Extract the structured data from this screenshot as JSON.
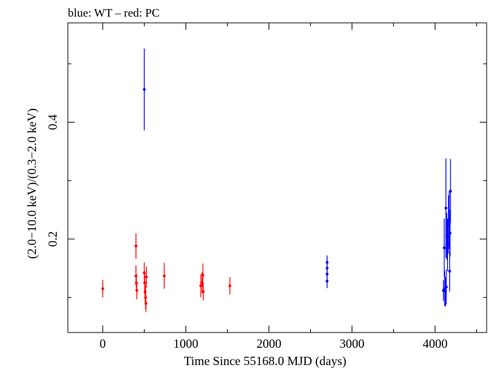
{
  "title": "blue: WT – red: PC",
  "chart_data": {
    "type": "scatter",
    "title": "blue: WT – red: PC",
    "xlabel": "Time Since 55168.0 MJD (days)",
    "ylabel": "(2.0−10.0 keV)/(0.3−2.0 keV)",
    "xlim": [
      -420,
      4620
    ],
    "ylim": [
      0.04,
      0.57
    ],
    "x_ticks": [
      0,
      1000,
      2000,
      3000,
      4000
    ],
    "x_tick_labels": [
      "0",
      "1000",
      "2000",
      "3000",
      "4000"
    ],
    "y_ticks": [
      0.2,
      0.4
    ],
    "y_tick_labels": [
      "0.2",
      "0.4"
    ],
    "grid": false,
    "series": [
      {
        "name": "PC",
        "color": "#ff0000",
        "points": [
          {
            "x": 0,
            "y": 0.115,
            "err": 0.015
          },
          {
            "x": 400,
            "y": 0.188,
            "err": 0.022
          },
          {
            "x": 400,
            "y": 0.137,
            "err": 0.018
          },
          {
            "x": 405,
            "y": 0.125,
            "err": 0.015
          },
          {
            "x": 410,
            "y": 0.112,
            "err": 0.015
          },
          {
            "x": 500,
            "y": 0.142,
            "err": 0.018
          },
          {
            "x": 505,
            "y": 0.125,
            "err": 0.02
          },
          {
            "x": 510,
            "y": 0.11,
            "err": 0.018
          },
          {
            "x": 515,
            "y": 0.1,
            "err": 0.02
          },
          {
            "x": 520,
            "y": 0.09,
            "err": 0.015
          },
          {
            "x": 525,
            "y": 0.135,
            "err": 0.018
          },
          {
            "x": 740,
            "y": 0.137,
            "err": 0.022
          },
          {
            "x": 1180,
            "y": 0.12,
            "err": 0.02
          },
          {
            "x": 1195,
            "y": 0.125,
            "err": 0.018
          },
          {
            "x": 1205,
            "y": 0.138,
            "err": 0.02
          },
          {
            "x": 1210,
            "y": 0.11,
            "err": 0.015
          },
          {
            "x": 1530,
            "y": 0.12,
            "err": 0.015
          }
        ]
      },
      {
        "name": "WT",
        "color": "#0000ff",
        "points": [
          {
            "x": 500,
            "y": 0.456,
            "err": 0.07
          },
          {
            "x": 2700,
            "y": 0.16,
            "err": 0.012
          },
          {
            "x": 2700,
            "y": 0.15,
            "err": 0.012
          },
          {
            "x": 2700,
            "y": 0.14,
            "err": 0.012
          },
          {
            "x": 2700,
            "y": 0.128,
            "err": 0.012
          },
          {
            "x": 4100,
            "y": 0.112,
            "err": 0.018
          },
          {
            "x": 4110,
            "y": 0.185,
            "err": 0.05
          },
          {
            "x": 4115,
            "y": 0.115,
            "err": 0.03
          },
          {
            "x": 4125,
            "y": 0.11,
            "err": 0.025
          },
          {
            "x": 4130,
            "y": 0.253,
            "err": 0.085
          },
          {
            "x": 4135,
            "y": 0.118,
            "err": 0.03
          },
          {
            "x": 4140,
            "y": 0.205,
            "err": 0.04
          },
          {
            "x": 4150,
            "y": 0.19,
            "err": 0.045
          },
          {
            "x": 4160,
            "y": 0.225,
            "err": 0.05
          },
          {
            "x": 4170,
            "y": 0.232,
            "err": 0.05
          },
          {
            "x": 4175,
            "y": 0.145,
            "err": 0.035
          },
          {
            "x": 4185,
            "y": 0.282,
            "err": 0.055
          },
          {
            "x": 4180,
            "y": 0.21,
            "err": 0.04
          }
        ]
      }
    ]
  }
}
